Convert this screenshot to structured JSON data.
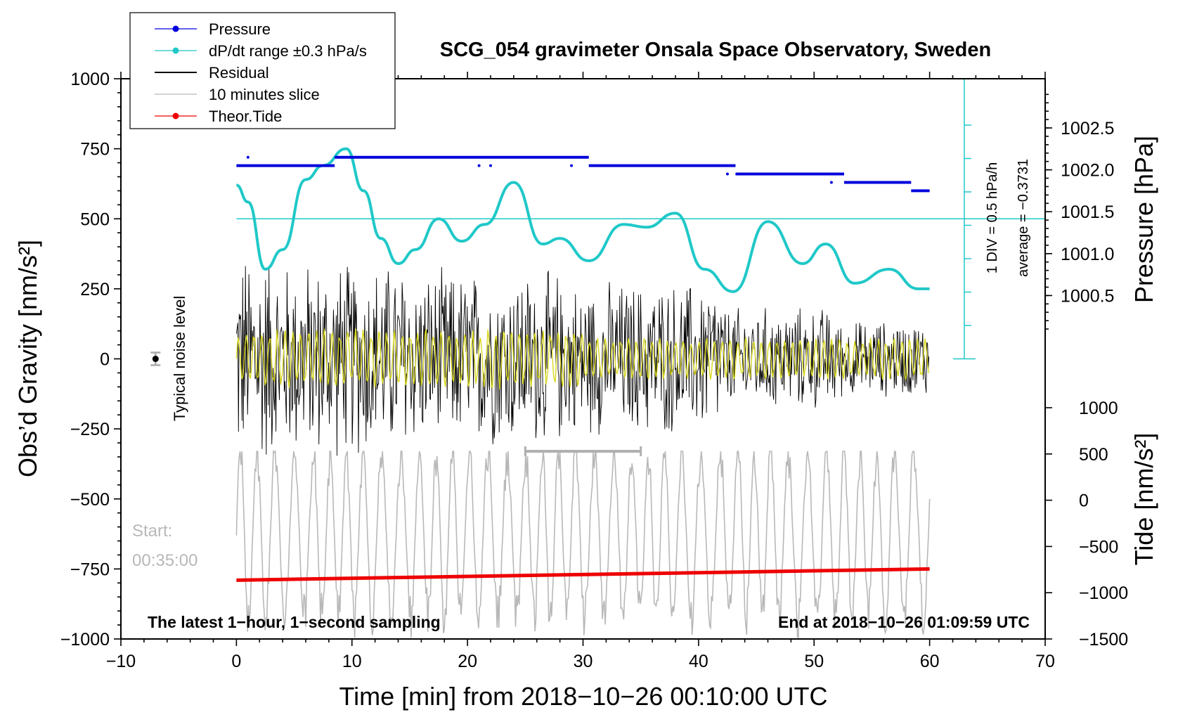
{
  "chart_data": {
    "type": "line",
    "title": "SCG_054 gravimeter Onsala Space Observatory, Sweden",
    "xlabel": "Time [min] from 2018−10−26 00:10:00 UTC",
    "ylabel_left": "Obs’d Gravity [nm/s²]",
    "ylabel_right_top": "Pressure [hPa]",
    "ylabel_right_bottom": "Tide [nm/s²]",
    "xlim": [
      -10,
      70
    ],
    "ylim_left": [
      -1000,
      1000
    ],
    "ylim_pressure": [
      1000.0,
      1003.0
    ],
    "ylim_tide": [
      -1500,
      1500
    ],
    "x_ticks": [
      "−10",
      "0",
      "10",
      "20",
      "30",
      "40",
      "50",
      "60",
      "70"
    ],
    "x_tick_values": [
      -10,
      0,
      10,
      20,
      30,
      40,
      50,
      60,
      70
    ],
    "y_left_ticks": [
      "1000",
      "750",
      "500",
      "250",
      "0",
      "−250",
      "−500",
      "−750",
      "−1000"
    ],
    "y_left_values": [
      1000,
      750,
      500,
      250,
      0,
      -250,
      -500,
      -750,
      -1000
    ],
    "pressure_ticks": [
      "1002.5",
      "1002.0",
      "1001.5",
      "1001.0",
      "1000.5"
    ],
    "pressure_values": [
      1002.5,
      1002.0,
      1001.5,
      1001.0,
      1000.5
    ],
    "tide_ticks": [
      "1000",
      "500",
      "0",
      "−500",
      "−1000",
      "−1500"
    ],
    "tide_values": [
      1000,
      500,
      0,
      -500,
      -1000,
      -1500
    ],
    "legend": [
      "Pressure",
      "dP/dt range ±0.3 hPa/s",
      "Residual",
      "10 minutes slice",
      "Theor.Tide"
    ],
    "legend_colors": [
      "#0000dd",
      "#20c8c8",
      "#000000",
      "#b8b8b8",
      "#ee0000"
    ],
    "series": [
      {
        "name": "Pressure",
        "color": "#0000dd",
        "x": [
          0,
          8.5,
          8.5,
          30.5,
          30.5,
          43.2,
          43.2,
          52.6,
          52.6,
          58.4,
          58.4,
          60
        ],
        "values": [
          1002.05,
          1002.05,
          1002.15,
          1002.15,
          1002.05,
          1002.05,
          1001.95,
          1001.95,
          1001.85,
          1001.85,
          1001.75,
          1001.75
        ]
      },
      {
        "name": "dP/dt",
        "color": "#20c8c8",
        "x": [
          0,
          1,
          2.5,
          4,
          6,
          7.5,
          9.5,
          11,
          12.5,
          14,
          15.5,
          17.5,
          19.5,
          21.5,
          24,
          26.5,
          28,
          30.5,
          33.5,
          35.5,
          38,
          40.5,
          43,
          46,
          49,
          51,
          53.5,
          56.5,
          59,
          60
        ],
        "values": [
          620,
          560,
          320,
          390,
          640,
          690,
          750,
          600,
          430,
          340,
          390,
          500,
          420,
          480,
          630,
          410,
          430,
          350,
          480,
          470,
          520,
          320,
          240,
          490,
          340,
          410,
          270,
          320,
          250,
          250
        ]
      },
      {
        "name": "Theor.Tide",
        "color": "#ee0000",
        "x": [
          0,
          60
        ],
        "values": [
          -790,
          -750
        ]
      }
    ],
    "noise_level_label": "Typical noise level",
    "noise_level_x": -7,
    "noise_level_y": 0,
    "pressure_ref_line_y": 500,
    "scale_label_1": "1 DIV = 0.5 hPa/h",
    "scale_label_2": "average = −0.3731",
    "slice_bar_x": [
      25,
      35
    ],
    "slice_bar_y": -330,
    "start_label": "Start:",
    "start_time": "00:35:00",
    "bottom_left_note": "The latest 1−hour, 1−second sampling",
    "bottom_right_note": "End at 2018−10−26 01:09:59 UTC"
  }
}
